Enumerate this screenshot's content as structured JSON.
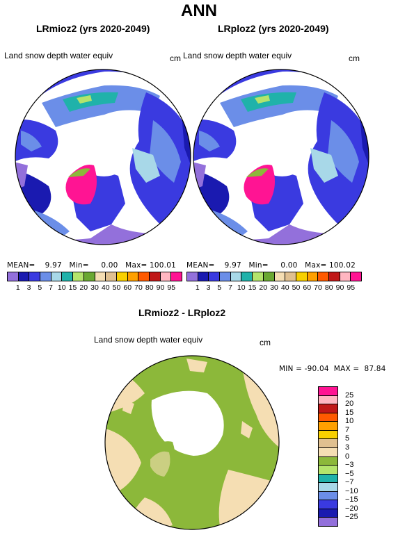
{
  "figure": {
    "title": "ANN"
  },
  "panels": [
    {
      "title": "LRmioz2 (yrs 2020-2049)",
      "field": "Land snow depth water equiv",
      "units": "cm",
      "stats": "MEAN=    9.97   Min=     0.00   Max= 100.01"
    },
    {
      "title": "LRploz2 (yrs 2020-2049)",
      "field": "Land snow depth water equiv",
      "units": "cm",
      "stats": "MEAN=    9.97   Min=     0.00   Max= 100.02"
    },
    {
      "title": "LRmioz2 - LRploz2",
      "field": "Land snow depth water equiv",
      "units": "cm",
      "stats": "MIN = -90.04  MAX =  87.84"
    }
  ],
  "colorbar_abs": {
    "labels": [
      "1",
      "3",
      "5",
      "7",
      "10",
      "15",
      "20",
      "30",
      "40",
      "50",
      "60",
      "70",
      "80",
      "90",
      "95"
    ],
    "colors": [
      "#9370db",
      "#1a1ab0",
      "#3a3ae0",
      "#6b8ee8",
      "#a8d8e8",
      "#20b2aa",
      "#b4e46c",
      "#6aa832",
      "#f5deb3",
      "#e0c090",
      "#f8d000",
      "#ffa000",
      "#ff5a00",
      "#c01818",
      "#ffb6c1",
      "#ff1493"
    ]
  },
  "colorbar_diff": {
    "labels": [
      "25",
      "20",
      "15",
      "10",
      "7",
      "5",
      "3",
      "0",
      "−3",
      "−5",
      "−7",
      "−10",
      "−15",
      "−20",
      "−25"
    ],
    "colors": [
      "#ff1493",
      "#ffb6c1",
      "#c01818",
      "#ff5a00",
      "#ffa000",
      "#f8d000",
      "#e0c090",
      "#f5deb3",
      "#8cb83a",
      "#b4e46c",
      "#20b2aa",
      "#a8d8e8",
      "#6b8ee8",
      "#3a3ae0",
      "#1a1ab0",
      "#9370db"
    ]
  },
  "map_colors": {
    "ocean": "#ffffff",
    "greenland": "#ff1493",
    "diff_land_a": "#8cb83a",
    "diff_land_b": "#f5deb3"
  }
}
